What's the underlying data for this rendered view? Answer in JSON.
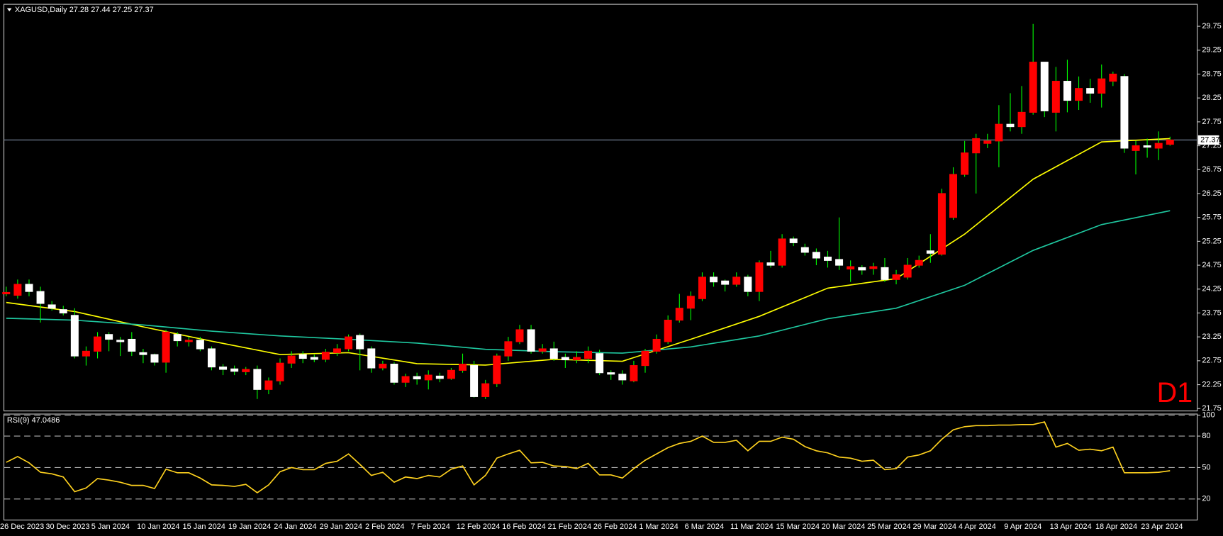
{
  "chart_data": [
    {
      "type": "candlestick",
      "symbol": "XAGUSD,Daily",
      "header_values": [
        27.28,
        27.44,
        27.25,
        27.37
      ],
      "annotation": "D1",
      "current_price": 27.37,
      "up_color": "#ff0000",
      "down_color": "#ffffff",
      "wick_color": "#00ff00",
      "line_color": "#7f8fa6",
      "annotation_color": "#ff0000",
      "grid": false,
      "ylim": [
        21.7,
        30.21
      ],
      "yticks": [
        21.75,
        22.25,
        22.75,
        23.25,
        23.75,
        24.25,
        24.75,
        25.25,
        25.75,
        26.25,
        26.75,
        27.25,
        27.75,
        28.25,
        28.75,
        29.25,
        29.75
      ],
      "categories": [
        "26 Dec 2023",
        null,
        null,
        null,
        "30 Dec 2023",
        null,
        null,
        null,
        "5 Jan 2024",
        null,
        null,
        null,
        "10 Jan 2024",
        null,
        null,
        null,
        "15 Jan 2024",
        null,
        null,
        null,
        "19 Jan 2024",
        null,
        null,
        null,
        "24 Jan 2024",
        null,
        null,
        null,
        "29 Jan 2024",
        null,
        null,
        null,
        "2 Feb 2024",
        null,
        null,
        null,
        "7 Feb 2024",
        null,
        null,
        null,
        "12 Feb 2024",
        null,
        null,
        null,
        "16 Feb 2024",
        null,
        null,
        null,
        "21 Feb 2024",
        null,
        null,
        null,
        "26 Feb 2024",
        null,
        null,
        null,
        "1 Mar 2024",
        null,
        null,
        null,
        "6 Mar 2024",
        null,
        null,
        null,
        "11 Mar 2024",
        null,
        null,
        null,
        "15 Mar 2024",
        null,
        null,
        null,
        "20 Mar 2024",
        null,
        null,
        null,
        "25 Mar 2024",
        null,
        null,
        null,
        "29 Mar 2024",
        null,
        null,
        null,
        "4 Apr 2024",
        null,
        null,
        null,
        "9 Apr 2024",
        null,
        null,
        null,
        "13 Apr 2024",
        null,
        null,
        null,
        "18 Apr 2024",
        null,
        null,
        null,
        "23 Apr 2024",
        null,
        null
      ],
      "open": [
        24.15,
        24.12,
        24.35,
        24.2,
        23.92,
        23.82,
        23.7,
        22.85,
        22.95,
        23.3,
        23.18,
        23.2,
        22.92,
        22.88,
        22.72,
        23.3,
        23.15,
        23.18,
        23.0,
        22.62,
        22.58,
        22.52,
        22.57,
        22.15,
        22.33,
        22.7,
        22.88,
        22.82,
        22.78,
        22.92,
        23.0,
        23.28,
        23.0,
        22.6,
        22.68,
        22.3,
        22.42,
        22.35,
        22.43,
        22.38,
        22.55,
        22.65,
        22.0,
        22.27,
        22.85,
        23.15,
        23.4,
        22.95,
        23.0,
        22.82,
        22.77,
        22.8,
        22.9,
        22.5,
        22.47,
        22.33,
        22.65,
        22.95,
        23.15,
        23.6,
        23.85,
        24.05,
        24.5,
        24.42,
        24.35,
        24.5,
        24.2,
        24.8,
        24.75,
        25.3,
        25.12,
        25.02,
        24.92,
        24.87,
        24.67,
        24.7,
        24.68,
        24.7,
        24.45,
        24.5,
        24.75,
        25.05,
        24.98,
        25.75,
        26.65,
        27.1,
        27.3,
        27.35,
        27.7,
        27.65,
        27.95,
        29.0,
        27.95,
        28.6,
        28.2,
        28.45,
        28.35,
        28.6,
        28.7,
        27.15,
        27.25,
        27.2,
        27.28
      ],
      "high": [
        24.3,
        24.45,
        24.45,
        24.3,
        24.0,
        23.9,
        23.85,
        23.05,
        23.35,
        23.35,
        23.25,
        23.35,
        23.0,
        22.9,
        23.4,
        23.35,
        23.25,
        23.25,
        23.05,
        22.68,
        22.65,
        22.62,
        22.65,
        22.4,
        22.8,
        22.95,
        22.95,
        22.88,
        23.0,
        23.1,
        23.3,
        23.32,
        23.05,
        22.75,
        22.72,
        22.48,
        22.5,
        22.55,
        22.5,
        22.6,
        22.9,
        22.75,
        22.35,
        22.9,
        23.25,
        23.5,
        23.5,
        23.1,
        23.15,
        22.9,
        22.95,
        23.05,
        22.98,
        22.55,
        22.55,
        22.75,
        23.0,
        23.3,
        23.7,
        24.15,
        24.2,
        24.6,
        24.6,
        24.45,
        24.6,
        24.55,
        24.85,
        25.05,
        25.4,
        25.35,
        25.2,
        25.1,
        25.05,
        25.75,
        24.85,
        24.75,
        24.8,
        24.9,
        24.65,
        24.9,
        24.95,
        25.4,
        26.35,
        26.8,
        27.35,
        27.5,
        27.5,
        28.1,
        28.35,
        28.5,
        29.8,
        29.0,
        28.9,
        29.05,
        28.7,
        28.65,
        28.95,
        28.8,
        28.75,
        27.35,
        27.4,
        27.55,
        27.44
      ],
      "low": [
        24.1,
        24.05,
        24.1,
        23.55,
        23.8,
        23.7,
        22.8,
        22.65,
        22.8,
        22.95,
        22.85,
        22.85,
        22.7,
        22.65,
        22.5,
        23.05,
        23.05,
        22.95,
        22.55,
        22.45,
        22.45,
        22.45,
        21.95,
        22.05,
        22.25,
        22.6,
        22.7,
        22.72,
        22.72,
        22.85,
        22.95,
        22.55,
        22.5,
        22.55,
        22.25,
        22.2,
        22.25,
        22.15,
        22.3,
        22.35,
        22.5,
        21.98,
        21.95,
        22.2,
        22.75,
        23.1,
        22.9,
        22.9,
        22.75,
        22.6,
        22.7,
        22.7,
        22.45,
        22.35,
        22.25,
        22.3,
        22.5,
        22.9,
        23.1,
        23.55,
        23.6,
        24.0,
        24.3,
        24.2,
        24.3,
        24.1,
        24.0,
        24.7,
        24.7,
        25.15,
        24.95,
        24.75,
        24.7,
        24.65,
        24.4,
        24.55,
        24.55,
        24.4,
        24.35,
        24.45,
        24.7,
        24.8,
        24.95,
        25.7,
        26.6,
        26.25,
        27.2,
        26.8,
        27.55,
        27.5,
        27.9,
        27.85,
        27.55,
        27.95,
        28.0,
        28.15,
        28.05,
        28.5,
        27.1,
        26.65,
        27.0,
        26.95,
        27.25
      ],
      "close": [
        24.18,
        24.35,
        24.2,
        23.95,
        23.85,
        23.75,
        22.85,
        22.95,
        23.25,
        23.2,
        23.15,
        22.95,
        22.88,
        22.72,
        23.35,
        23.17,
        23.18,
        23.0,
        22.62,
        22.57,
        22.53,
        22.57,
        22.15,
        22.33,
        22.7,
        22.85,
        22.8,
        22.78,
        22.93,
        23.0,
        23.25,
        23.0,
        22.6,
        22.68,
        22.3,
        22.42,
        22.37,
        22.45,
        22.38,
        22.55,
        22.68,
        22.0,
        22.27,
        22.85,
        23.15,
        23.4,
        22.95,
        23.0,
        22.8,
        22.77,
        22.82,
        22.95,
        22.5,
        22.47,
        22.35,
        22.65,
        22.95,
        23.2,
        23.6,
        23.85,
        24.1,
        24.5,
        24.4,
        24.35,
        24.5,
        24.2,
        24.8,
        24.75,
        25.3,
        25.22,
        25.02,
        24.9,
        24.85,
        24.75,
        24.72,
        24.65,
        24.72,
        24.45,
        24.55,
        24.75,
        24.85,
        25.0,
        26.25,
        26.65,
        27.1,
        27.4,
        27.35,
        27.7,
        27.65,
        27.95,
        29.0,
        27.98,
        28.6,
        28.2,
        28.45,
        28.35,
        28.65,
        28.75,
        27.2,
        27.25,
        27.22,
        27.3,
        27.37
      ],
      "series": [
        {
          "color": "#ffff00",
          "x": [
            0,
            6,
            12,
            18,
            24,
            30,
            36,
            42,
            48,
            54,
            60,
            66,
            72,
            78,
            84,
            90,
            96,
            102
          ],
          "values": [
            23.97,
            23.78,
            23.46,
            23.16,
            22.88,
            22.92,
            22.69,
            22.66,
            22.78,
            22.74,
            23.2,
            23.68,
            24.27,
            24.47,
            25.4,
            26.55,
            27.33,
            27.4
          ]
        },
        {
          "color": "#1fc8a0",
          "x": [
            0,
            6,
            12,
            18,
            24,
            30,
            36,
            42,
            48,
            54,
            60,
            66,
            72,
            78,
            84,
            90,
            96,
            102
          ],
          "values": [
            23.64,
            23.6,
            23.5,
            23.37,
            23.27,
            23.2,
            23.12,
            22.99,
            22.94,
            22.91,
            23.04,
            23.27,
            23.63,
            23.85,
            24.33,
            25.06,
            25.6,
            25.89
          ]
        }
      ]
    },
    {
      "type": "line",
      "title": "RSI(9)",
      "last_value": 47.0486,
      "color": "#ffd21f",
      "grid_color": "#b0b0b0",
      "grid": true,
      "ylim": [
        0,
        101
      ],
      "yticks": [
        20,
        50,
        80,
        100
      ],
      "values": [
        55,
        60.5,
        54.5,
        45.5,
        44,
        41,
        27,
        30.5,
        39.5,
        38,
        36,
        33,
        33,
        30,
        48.5,
        45,
        45,
        40,
        33.5,
        33,
        32,
        34,
        26,
        33.5,
        46,
        50,
        48,
        48,
        54,
        56,
        63,
        53,
        42.5,
        45.5,
        36,
        41,
        39.5,
        42.5,
        41,
        48.5,
        51.5,
        33.5,
        42.5,
        59,
        63,
        66.5,
        54.5,
        55,
        51.5,
        51,
        49,
        54,
        43,
        43,
        40,
        49,
        57,
        63,
        69,
        73,
        75,
        80,
        74,
        74,
        76,
        66,
        75,
        75,
        79,
        77,
        70,
        66,
        64,
        60,
        59,
        56,
        57,
        48,
        49,
        60,
        62,
        66,
        77,
        86,
        89,
        90,
        90,
        90.5,
        90.5,
        91,
        91,
        93.5,
        69.5,
        73,
        66.5,
        67.5,
        66,
        69.5,
        45,
        45,
        45,
        45.5,
        47
      ]
    }
  ]
}
